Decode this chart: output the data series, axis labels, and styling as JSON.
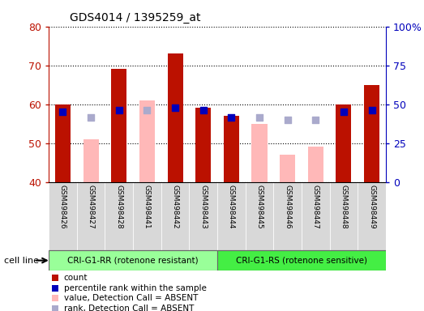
{
  "title": "GDS4014 / 1395259_at",
  "samples": [
    "GSM498426",
    "GSM498427",
    "GSM498428",
    "GSM498441",
    "GSM498442",
    "GSM498443",
    "GSM498444",
    "GSM498445",
    "GSM498446",
    "GSM498447",
    "GSM498448",
    "GSM498449"
  ],
  "group1_label": "CRI-G1-RR (rotenone resistant)",
  "group2_label": "CRI-G1-RS (rotenone sensitive)",
  "cell_line_label": "cell line",
  "detection": [
    "P",
    "A",
    "P",
    "A",
    "P",
    "P",
    "P",
    "A",
    "A",
    "A",
    "P",
    "P"
  ],
  "count_values": [
    60.0,
    null,
    69.0,
    null,
    73.0,
    59.0,
    57.0,
    null,
    null,
    null,
    60.0,
    65.0
  ],
  "absent_values": [
    null,
    51.0,
    null,
    61.0,
    null,
    null,
    null,
    55.0,
    47.0,
    49.0,
    null,
    null
  ],
  "rank_present": [
    58.0,
    null,
    58.5,
    null,
    59.0,
    58.5,
    56.5,
    null,
    null,
    null,
    58.0,
    58.5
  ],
  "rank_absent": [
    null,
    56.5,
    null,
    58.5,
    null,
    null,
    null,
    56.5,
    56.0,
    56.0,
    null,
    null
  ],
  "ylim_min": 40,
  "ylim_max": 80,
  "y2lim_min": 0,
  "y2lim_max": 100,
  "yticks": [
    40,
    50,
    60,
    70,
    80
  ],
  "y2ticks": [
    0,
    25,
    50,
    75,
    100
  ],
  "y2ticklabels": [
    "0",
    "25",
    "50",
    "75",
    "100%"
  ],
  "bar_color_red": "#bb1100",
  "bar_color_pink": "#ffb8b8",
  "dot_color_blue": "#0000bb",
  "dot_color_lightblue": "#aaaacc",
  "group1_color": "#99ff99",
  "group2_color": "#44ee44",
  "bg_color": "#d8d8d8",
  "bar_width": 0.55,
  "dot_size": 30,
  "n_group1": 6,
  "n_group2": 6,
  "legend_items": [
    {
      "color": "#bb1100",
      "label": "count"
    },
    {
      "color": "#0000bb",
      "label": "percentile rank within the sample"
    },
    {
      "color": "#ffb8b8",
      "label": "value, Detection Call = ABSENT"
    },
    {
      "color": "#aaaacc",
      "label": "rank, Detection Call = ABSENT"
    }
  ]
}
